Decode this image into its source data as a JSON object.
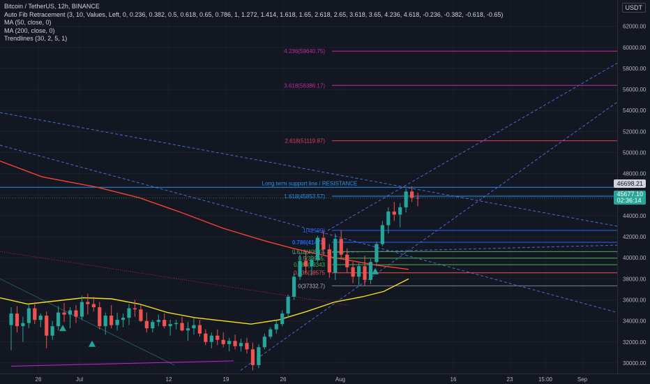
{
  "legend": {
    "title": "Bitcoin / TetherUS, 12h, BINANCE",
    "fib": "Auto Fib Retracement (3, 10, Values, Left, 0, 0.236, 0.382, 0.5, 0.618, 0.65, 0.786, 1, 1.272, 1.414, 1.618, 1.65, 2.618, 2.65, 3.618, 3.65, 4.236, 4.618, -0.236, -0.382, -0.618, -0.65)",
    "ma50": "MA (50, close, 0)",
    "ma200": "MA (200, close, 0)",
    "trendlines": "Trendlines (30, 2, 5, 1)"
  },
  "currency": "USDT",
  "colors": {
    "background": "#131722",
    "up": "#26a69a",
    "down": "#ef5350",
    "ma50": "#f5e11b",
    "ma200": "#f44336",
    "fib": "#b83280",
    "resistance": "#2196f3",
    "channel": "#4a6bd6"
  },
  "price_badges": {
    "resistance": "46698.21",
    "last": "45677.10",
    "countdown": "02:36:14"
  },
  "annotation": "Long term support line / RESISTANCE",
  "chart_data": {
    "type": "candlestick",
    "timeframe": "12h",
    "x_ticks": [
      "26",
      "Jul",
      "12",
      "19",
      "26",
      "Aug",
      "16",
      "23",
      "15:00",
      "Sep"
    ],
    "y_ticks": [
      "30000.00",
      "32000.00",
      "34000.00",
      "36000.00",
      "38000.00",
      "40000.00",
      "42000.00",
      "44000.00",
      "46000.00",
      "48000.00",
      "50000.00",
      "52000.00",
      "54000.00",
      "56000.00",
      "58000.00",
      "60000.00",
      "62000.00"
    ],
    "ylim": [
      29000,
      64500
    ],
    "fib_levels": [
      {
        "label": "4.236(59640.75)",
        "value": 59640.75
      },
      {
        "label": "3.618(56386.17)",
        "value": 56386.17
      },
      {
        "label": "2.618(51119.87)",
        "value": 51119.87
      },
      {
        "label": "1.618(45853.57)",
        "value": 45853.57
      },
      {
        "label": "1(42599)",
        "value": 42599
      },
      {
        "label": "0.786(41472.",
        "value": 41472
      },
      {
        "label": "0.618(40587.",
        "value": 40587
      },
      {
        "label": "0.5(39965.",
        "value": 39965
      },
      {
        "label": "0.382(39343",
        "value": 39343
      },
      {
        "label": "0.236(38575",
        "value": 38575
      },
      {
        "label": "0(37332.7)",
        "value": 37332.7
      }
    ],
    "resistance_level": 46698.21,
    "last_price": 45677.1,
    "candles": [
      [
        33600,
        35300,
        31200,
        34700
      ],
      [
        34700,
        35400,
        32900,
        33500
      ],
      [
        33500,
        34400,
        32000,
        33800
      ],
      [
        33800,
        35600,
        33300,
        35200
      ],
      [
        35200,
        35800,
        33700,
        34100
      ],
      [
        34100,
        34700,
        33400,
        34500
      ],
      [
        34500,
        34900,
        31400,
        32600
      ],
      [
        32600,
        34000,
        32200,
        33500
      ],
      [
        33500,
        35400,
        33100,
        34800
      ],
      [
        34800,
        35700,
        33900,
        34600
      ],
      [
        34600,
        35300,
        33300,
        35000
      ],
      [
        35000,
        35500,
        33800,
        34400
      ],
      [
        34400,
        36400,
        34100,
        35800
      ],
      [
        35800,
        36600,
        34600,
        35600
      ],
      [
        35600,
        36300,
        34900,
        35300
      ],
      [
        35300,
        35800,
        33200,
        33500
      ],
      [
        33500,
        34800,
        32700,
        34500
      ],
      [
        34500,
        35500,
        33300,
        33600
      ],
      [
        33600,
        34800,
        33100,
        34100
      ],
      [
        34100,
        34700,
        33400,
        34300
      ],
      [
        34300,
        35600,
        33600,
        35200
      ],
      [
        35200,
        36000,
        34400,
        35100
      ],
      [
        35100,
        35500,
        33900,
        34000
      ],
      [
        34000,
        34800,
        32900,
        33300
      ],
      [
        33300,
        34100,
        32900,
        33900
      ],
      [
        33900,
        34600,
        33500,
        34100
      ],
      [
        34100,
        34700,
        33300,
        33500
      ],
      [
        33500,
        34100,
        32600,
        33700
      ],
      [
        33700,
        34100,
        33200,
        33800
      ],
      [
        33800,
        34400,
        33000,
        33100
      ],
      [
        33100,
        33900,
        32100,
        33300
      ],
      [
        33300,
        34300,
        32700,
        33600
      ],
      [
        33600,
        34100,
        32500,
        32800
      ],
      [
        32800,
        33200,
        31700,
        32000
      ],
      [
        32000,
        32900,
        31400,
        32600
      ],
      [
        32600,
        33200,
        31700,
        32200
      ],
      [
        32200,
        32900,
        31500,
        31800
      ],
      [
        31800,
        32400,
        31100,
        32100
      ],
      [
        32100,
        32700,
        31300,
        31600
      ],
      [
        31600,
        32300,
        31100,
        31900
      ],
      [
        31900,
        32400,
        30900,
        31300
      ],
      [
        31300,
        31900,
        29300,
        29800
      ],
      [
        29800,
        31800,
        29500,
        31500
      ],
      [
        31500,
        32800,
        31300,
        32500
      ],
      [
        32500,
        33400,
        32300,
        33200
      ],
      [
        33200,
        34000,
        32800,
        33700
      ],
      [
        33700,
        35000,
        33500,
        34700
      ],
      [
        34700,
        36500,
        34300,
        36300
      ],
      [
        36300,
        38500,
        36000,
        38200
      ],
      [
        38200,
        40300,
        37900,
        39700
      ],
      [
        39700,
        40600,
        38600,
        39200
      ],
      [
        39200,
        40200,
        38300,
        39800
      ],
      [
        39800,
        42100,
        39600,
        41900
      ],
      [
        41900,
        42600,
        40300,
        40800
      ],
      [
        40800,
        41300,
        38100,
        38600
      ],
      [
        38600,
        42300,
        37900,
        41800
      ],
      [
        41800,
        42600,
        40000,
        40300
      ],
      [
        40300,
        40900,
        38600,
        39100
      ],
      [
        39100,
        39600,
        37600,
        38200
      ],
      [
        38200,
        39500,
        37400,
        39200
      ],
      [
        39200,
        40200,
        37300,
        37900
      ],
      [
        37900,
        39900,
        37500,
        39600
      ],
      [
        39600,
        41500,
        39200,
        41300
      ],
      [
        41300,
        43500,
        41100,
        43100
      ],
      [
        43100,
        44800,
        42300,
        44400
      ],
      [
        44400,
        45300,
        43500,
        44100
      ],
      [
        44100,
        45200,
        42900,
        44800
      ],
      [
        44800,
        46600,
        44300,
        46300
      ],
      [
        46300,
        46800,
        45300,
        45700
      ],
      [
        45700,
        46200,
        44900,
        45677
      ]
    ]
  }
}
